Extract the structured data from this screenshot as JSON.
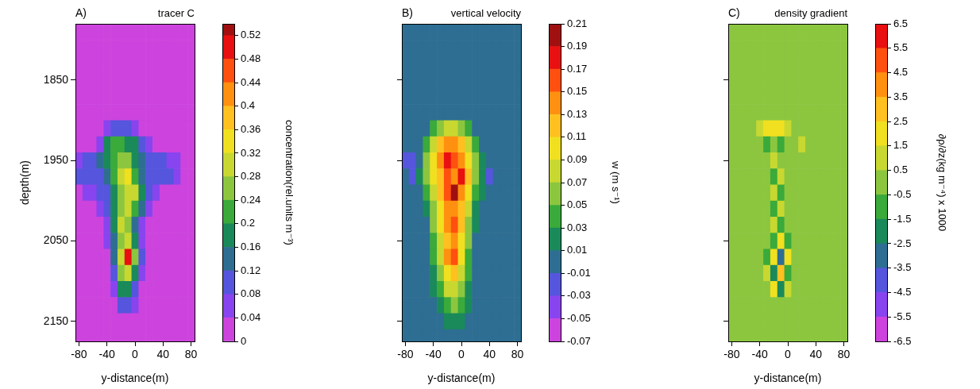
{
  "chart_data": [
    {
      "type": "heatmap",
      "panel_label": "A)",
      "title": "tracer C",
      "x_label": "y-distance(m)",
      "y_label": "depth(m)",
      "xlim": [
        -85,
        85
      ],
      "xticks": [
        -80,
        -40,
        0,
        40,
        80
      ],
      "ylim": [
        1780,
        2175
      ],
      "yticks": [
        1850,
        1950,
        2050,
        2150
      ],
      "x": [
        -80,
        -70,
        -60,
        -50,
        -40,
        -30,
        -20,
        -10,
        0,
        10,
        20,
        30,
        40,
        50,
        60,
        70,
        80
      ],
      "y": [
        1790,
        1810,
        1830,
        1850,
        1870,
        1890,
        1910,
        1930,
        1950,
        1970,
        1990,
        2010,
        2030,
        2050,
        2070,
        2090,
        2110,
        2130,
        2150,
        2170
      ],
      "z": [
        [
          0,
          0,
          0,
          0,
          0,
          0,
          0,
          0,
          0,
          0,
          0,
          0,
          0,
          0,
          0,
          0,
          0
        ],
        [
          0,
          0,
          0,
          0,
          0,
          0,
          0,
          0,
          0,
          0,
          0,
          0,
          0,
          0,
          0,
          0,
          0
        ],
        [
          0,
          0,
          0,
          0,
          0,
          0,
          0,
          0,
          0,
          0,
          0,
          0,
          0,
          0,
          0,
          0,
          0
        ],
        [
          0,
          0,
          0,
          0,
          0,
          0,
          0,
          0,
          0,
          0,
          0,
          0,
          0,
          0,
          0,
          0,
          0
        ],
        [
          0,
          0,
          0,
          0,
          0,
          0,
          0,
          0,
          0,
          0,
          0,
          0,
          0,
          0,
          0,
          0,
          0
        ],
        [
          0,
          0,
          0,
          0,
          0,
          0,
          0,
          0,
          0,
          0,
          0,
          0,
          0,
          0,
          0,
          0,
          0
        ],
        [
          0,
          0,
          0,
          0,
          0.04,
          0.08,
          0.1,
          0.1,
          0.06,
          0,
          0,
          0,
          0,
          0,
          0,
          0,
          0
        ],
        [
          0,
          0,
          0,
          0.06,
          0.16,
          0.2,
          0.2,
          0.18,
          0.16,
          0.1,
          0.06,
          0,
          0,
          0,
          0,
          0,
          0
        ],
        [
          0.06,
          0.08,
          0.1,
          0.12,
          0.18,
          0.22,
          0.26,
          0.24,
          0.18,
          0.12,
          0.1,
          0.08,
          0.08,
          0.06,
          0.04,
          0,
          0
        ],
        [
          0.08,
          0.1,
          0.1,
          0.1,
          0.14,
          0.22,
          0.3,
          0.32,
          0.2,
          0.12,
          0.1,
          0.1,
          0.1,
          0.08,
          0.06,
          0,
          0
        ],
        [
          0.02,
          0.04,
          0.06,
          0.08,
          0.1,
          0.18,
          0.24,
          0.3,
          0.28,
          0.16,
          0.08,
          0.04,
          0.02,
          0,
          0,
          0,
          0
        ],
        [
          0,
          0,
          0,
          0.04,
          0.08,
          0.16,
          0.26,
          0.3,
          0.22,
          0.12,
          0.04,
          0,
          0,
          0,
          0,
          0,
          0
        ],
        [
          0,
          0,
          0,
          0,
          0.06,
          0.16,
          0.28,
          0.24,
          0.14,
          0.06,
          0,
          0,
          0,
          0,
          0,
          0,
          0
        ],
        [
          0,
          0,
          0,
          0,
          0.04,
          0.14,
          0.24,
          0.3,
          0.18,
          0.06,
          0,
          0,
          0,
          0,
          0,
          0,
          0
        ],
        [
          0,
          0,
          0,
          0,
          0.02,
          0.12,
          0.3,
          0.48,
          0.26,
          0.08,
          0,
          0,
          0,
          0,
          0,
          0,
          0
        ],
        [
          0,
          0,
          0,
          0,
          0,
          0.1,
          0.26,
          0.3,
          0.16,
          0.04,
          0,
          0,
          0,
          0,
          0,
          0,
          0
        ],
        [
          0,
          0,
          0,
          0,
          0,
          0.06,
          0.16,
          0.18,
          0.1,
          0,
          0,
          0,
          0,
          0,
          0,
          0,
          0
        ],
        [
          0,
          0,
          0,
          0,
          0,
          0.02,
          0.08,
          0.08,
          0.04,
          0,
          0,
          0,
          0,
          0,
          0,
          0,
          0
        ],
        [
          0,
          0,
          0,
          0,
          0,
          0,
          0,
          0,
          0,
          0,
          0,
          0,
          0,
          0,
          0,
          0,
          0
        ],
        [
          0,
          0,
          0,
          0,
          0,
          0,
          0,
          0,
          0,
          0,
          0,
          0,
          0,
          0,
          0,
          0,
          0
        ]
      ],
      "colorbar": {
        "title": "concentration(rel.units m⁻³)",
        "lim": [
          0,
          0.54
        ],
        "ticks": [
          0,
          0.04,
          0.08,
          0.12,
          0.16,
          0.2,
          0.24,
          0.28,
          0.32,
          0.36,
          0.4,
          0.44,
          0.48,
          0.52
        ]
      }
    },
    {
      "type": "heatmap",
      "panel_label": "B)",
      "title": "vertical velocity",
      "x_label": "y-distance(m)",
      "tick_labels": "x",
      "xlim": [
        -85,
        85
      ],
      "xticks": [
        -80,
        -40,
        0,
        40,
        80
      ],
      "ylim": [
        1780,
        2175
      ],
      "yticks": [
        1850,
        1950,
        2050,
        2150
      ],
      "x": [
        -80,
        -70,
        -60,
        -50,
        -40,
        -30,
        -20,
        -10,
        0,
        10,
        20,
        30,
        40,
        50,
        60,
        70,
        80
      ],
      "y": [
        1790,
        1810,
        1830,
        1850,
        1870,
        1890,
        1910,
        1930,
        1950,
        1970,
        1990,
        2010,
        2030,
        2050,
        2070,
        2090,
        2110,
        2130,
        2150,
        2170
      ],
      "z": [
        [
          0,
          0,
          0,
          0,
          0,
          0,
          0,
          0,
          0,
          0,
          0,
          0,
          0,
          0,
          0,
          0,
          0
        ],
        [
          0,
          0,
          0,
          0,
          0,
          0,
          0,
          0,
          0,
          0,
          0,
          0,
          0,
          0,
          0,
          0,
          0
        ],
        [
          0,
          0,
          0,
          0,
          0,
          0,
          0,
          0,
          0,
          0,
          0,
          0,
          0,
          0,
          0,
          0,
          0
        ],
        [
          0,
          0,
          0,
          0,
          0,
          0,
          0,
          0,
          0,
          0,
          0,
          0,
          0,
          0,
          0,
          0,
          0
        ],
        [
          0,
          0,
          0,
          0,
          0,
          0,
          0,
          0,
          0,
          0,
          0,
          0,
          0,
          0,
          0,
          0,
          0
        ],
        [
          0,
          0,
          0,
          0,
          0,
          0,
          0,
          0,
          0,
          0,
          0,
          0,
          0,
          0,
          0,
          0,
          0
        ],
        [
          0,
          0,
          0,
          0,
          0.03,
          0.05,
          0.07,
          0.07,
          0.05,
          0.03,
          0,
          0,
          0,
          0,
          0,
          0,
          0
        ],
        [
          0,
          0,
          0,
          0.03,
          0.07,
          0.11,
          0.13,
          0.13,
          0.11,
          0.07,
          0.03,
          0,
          0,
          0,
          0,
          0,
          0
        ],
        [
          -0.02,
          -0.02,
          -0.01,
          0.05,
          0.09,
          0.13,
          0.17,
          0.15,
          0.13,
          0.09,
          0.05,
          0.02,
          -0.01,
          -0.01,
          0,
          0,
          0
        ],
        [
          -0.01,
          -0.02,
          0.02,
          0.05,
          0.09,
          0.11,
          0.15,
          0.13,
          0.17,
          0.11,
          0.05,
          0.02,
          -0.02,
          -0.01,
          0,
          0,
          -0.01
        ],
        [
          0,
          0,
          0,
          0.04,
          0.07,
          0.11,
          0.15,
          0.19,
          0.13,
          0.09,
          0.04,
          0.01,
          0,
          0,
          0,
          0,
          0
        ],
        [
          0,
          0,
          0,
          0.02,
          0.06,
          0.1,
          0.13,
          0.13,
          0.11,
          0.07,
          0.02,
          0,
          0,
          0,
          0,
          0,
          0
        ],
        [
          0,
          0,
          0,
          0,
          0.05,
          0.09,
          0.13,
          0.15,
          0.11,
          0.05,
          0.01,
          0,
          0,
          0,
          0,
          0,
          0
        ],
        [
          0,
          0,
          0,
          0,
          0.04,
          0.08,
          0.11,
          0.13,
          0.09,
          0.05,
          0,
          0,
          0,
          0,
          0,
          0,
          0
        ],
        [
          0,
          0,
          0,
          0,
          0.03,
          0.07,
          0.13,
          0.15,
          0.09,
          0.04,
          0,
          0,
          0,
          0,
          0,
          0,
          0
        ],
        [
          0,
          0,
          0,
          0,
          0.02,
          0.05,
          0.09,
          0.11,
          0.07,
          0.03,
          0,
          0,
          0,
          0,
          0,
          0,
          0
        ],
        [
          0,
          0,
          0,
          0,
          0.01,
          0.04,
          0.07,
          0.07,
          0.05,
          0.02,
          0,
          0,
          0,
          0,
          0,
          0,
          0
        ],
        [
          0,
          0,
          0,
          0,
          0,
          0.02,
          0.04,
          0.05,
          0.03,
          0.01,
          0,
          0,
          0,
          0,
          0,
          0,
          0
        ],
        [
          0,
          0,
          0,
          0,
          0,
          0,
          0.02,
          0.02,
          0.01,
          0,
          0,
          0,
          0,
          0,
          0,
          0,
          0
        ],
        [
          0,
          0,
          0,
          0,
          0,
          0,
          0,
          0,
          0,
          0,
          0,
          0,
          0,
          0,
          0,
          0,
          0
        ]
      ],
      "colorbar": {
        "title": "w (m s⁻¹)",
        "lim": [
          -0.07,
          0.21
        ],
        "ticks": [
          -0.07,
          -0.05,
          -0.03,
          -0.01,
          0.01,
          0.03,
          0.05,
          0.07,
          0.09,
          0.11,
          0.13,
          0.15,
          0.17,
          0.19,
          0.21
        ]
      }
    },
    {
      "type": "heatmap",
      "panel_label": "C)",
      "title": "density gradient",
      "x_label": "y-distance(m)",
      "tick_labels": "x",
      "xlim": [
        -85,
        85
      ],
      "xticks": [
        -80,
        -40,
        0,
        40,
        80
      ],
      "ylim": [
        1780,
        2175
      ],
      "yticks": [
        1850,
        1950,
        2050,
        2150
      ],
      "x": [
        -80,
        -70,
        -60,
        -50,
        -40,
        -30,
        -20,
        -10,
        0,
        10,
        20,
        30,
        40,
        50,
        60,
        70,
        80
      ],
      "y": [
        1790,
        1810,
        1830,
        1850,
        1870,
        1890,
        1910,
        1930,
        1950,
        1970,
        1990,
        2010,
        2030,
        2050,
        2070,
        2090,
        2110,
        2130,
        2150,
        2170
      ],
      "z": [
        [
          0,
          0,
          0,
          0,
          0,
          0,
          0,
          0,
          0,
          0,
          0,
          0,
          0,
          0,
          0,
          0,
          0
        ],
        [
          0,
          0,
          0,
          0,
          0,
          0,
          0,
          0,
          0,
          0,
          0,
          0,
          0,
          0,
          0,
          0,
          0
        ],
        [
          0,
          0,
          0,
          0,
          0,
          0,
          0,
          0,
          0,
          0,
          0,
          0,
          0,
          0,
          0,
          0,
          0
        ],
        [
          0,
          0,
          0,
          0,
          0,
          0,
          0,
          0,
          0,
          0,
          0,
          0,
          0,
          0,
          0,
          0,
          0
        ],
        [
          0,
          0,
          0,
          0,
          0,
          0,
          0,
          0,
          0,
          0,
          0,
          0,
          0,
          0,
          0,
          0,
          0
        ],
        [
          0,
          0,
          0,
          0,
          0,
          0,
          0,
          0,
          0,
          0,
          0,
          0,
          0,
          0,
          0,
          0,
          0
        ],
        [
          0,
          0,
          0,
          0,
          1,
          1.5,
          1.5,
          1.5,
          1,
          0.4,
          0,
          0,
          0,
          0,
          0,
          0,
          0
        ],
        [
          0,
          0,
          0,
          0.4,
          -0.4,
          -1,
          0.4,
          -1,
          0.4,
          0.4,
          1,
          0.4,
          0,
          0,
          0,
          0,
          0
        ],
        [
          0.4,
          0,
          0,
          0,
          0.4,
          -0.4,
          1,
          -0.4,
          0.4,
          -0.4,
          0.4,
          0,
          0.4,
          0.4,
          0,
          0,
          0
        ],
        [
          0,
          0,
          0,
          0,
          -0.4,
          0.4,
          -1,
          1,
          -0.4,
          0.4,
          0,
          0,
          0,
          0,
          0,
          0,
          0
        ],
        [
          0,
          0,
          0,
          0,
          0,
          -0.4,
          1,
          -1,
          0.4,
          0,
          0,
          0,
          0,
          0,
          0,
          0,
          0
        ],
        [
          0,
          0,
          0,
          0,
          0,
          0.4,
          -1,
          1,
          -0.4,
          0,
          0,
          0,
          0,
          0,
          0,
          0,
          0
        ],
        [
          0,
          0,
          0,
          0,
          0,
          -0.4,
          1,
          -1,
          0.4,
          0,
          0,
          0,
          0,
          0,
          0,
          0,
          0
        ],
        [
          0,
          0,
          0,
          0,
          0,
          0.4,
          -1.5,
          1.5,
          -1,
          0,
          0,
          0,
          0,
          0,
          0,
          0,
          0
        ],
        [
          0,
          0,
          0,
          0,
          0,
          -1.5,
          2,
          -3.5,
          1.5,
          -0.4,
          0,
          0,
          0,
          0,
          0,
          0,
          0
        ],
        [
          0,
          0,
          0,
          0,
          0,
          1,
          -2.5,
          3,
          -1.5,
          0.4,
          0,
          0,
          0,
          0,
          0,
          0,
          0
        ],
        [
          0,
          0,
          0,
          0,
          0,
          -0.4,
          1.5,
          -2,
          1,
          0,
          0,
          0,
          0,
          0,
          0,
          0,
          0
        ],
        [
          0,
          0,
          0,
          0,
          0,
          0,
          -0.4,
          0.4,
          0,
          0,
          0,
          0,
          0,
          0,
          0,
          0,
          0
        ],
        [
          0,
          0,
          0,
          0,
          0,
          0,
          0,
          0,
          0,
          0,
          0,
          0,
          0,
          0,
          0,
          0,
          0
        ],
        [
          0,
          0,
          0,
          0,
          0,
          0,
          0,
          0,
          0,
          0,
          0,
          0,
          0,
          0,
          0,
          0,
          0
        ]
      ],
      "colorbar": {
        "title": "∂ρ/∂z(kg m⁻⁴) x 1000",
        "lim": [
          -6.5,
          6.5
        ],
        "ticks": [
          -6.5,
          -5.5,
          -4.5,
          -3.5,
          -2.5,
          -1.5,
          -0.5,
          0.5,
          1.5,
          2.5,
          3.5,
          4.5,
          5.5,
          6.5
        ]
      }
    }
  ]
}
